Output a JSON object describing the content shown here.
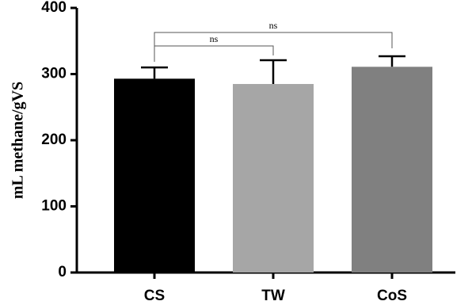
{
  "chart_data": {
    "type": "bar",
    "y_label": "mL methane/gVS",
    "categories": [
      "CS",
      "TW",
      "CoS"
    ],
    "values": [
      293,
      285,
      311
    ],
    "errors": [
      17,
      36,
      16
    ],
    "colors": [
      "#000000",
      "#a6a6a6",
      "#808080"
    ],
    "ylim": [
      0,
      400
    ],
    "yticks": [
      0,
      100,
      200,
      300,
      400
    ],
    "annotations": [
      {
        "text": "ns",
        "between": [
          "CS",
          "TW"
        ]
      },
      {
        "text": "ns",
        "between": [
          "CS",
          "CoS"
        ]
      }
    ]
  }
}
